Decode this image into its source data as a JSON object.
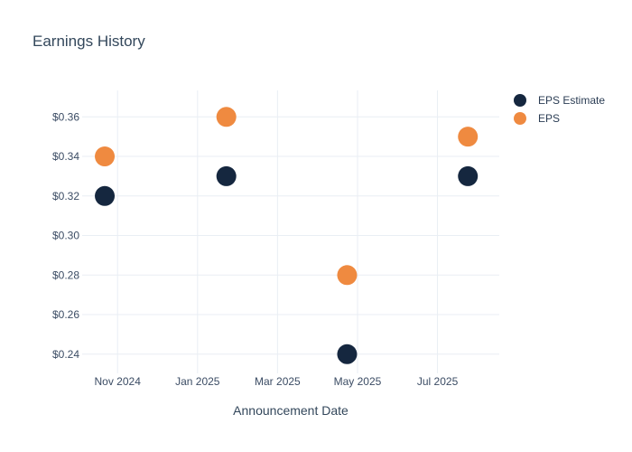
{
  "chart_data": {
    "type": "scatter",
    "title": "Earnings History",
    "xlabel": "Announcement Date",
    "ylabel": "",
    "grid": true,
    "legend_position": "right-top",
    "x_axis_unit": "months offset from Nov 2024 tick",
    "x_tick_labels": [
      "Nov 2024",
      "Jan 2025",
      "Mar 2025",
      "May 2025",
      "Jul 2025"
    ],
    "x_tick_months": [
      0,
      2,
      4,
      6,
      8
    ],
    "y_tick_labels": [
      "$0.24",
      "$0.26",
      "$0.28",
      "$0.30",
      "$0.32",
      "$0.34",
      "$0.36"
    ],
    "y_tick_values": [
      0.24,
      0.26,
      0.28,
      0.3,
      0.32,
      0.34,
      0.36
    ],
    "xlim_months": [
      -0.885,
      9.545
    ],
    "ylim": [
      0.2303,
      0.3734
    ],
    "marker_radius": 11,
    "series": [
      {
        "name": "EPS Estimate",
        "color": "#15273f",
        "points": [
          {
            "x_month": -0.32,
            "approx_date": "late Oct 2024",
            "value": 0.32
          },
          {
            "x_month": 2.72,
            "approx_date": "late Jan 2025",
            "value": 0.33
          },
          {
            "x_month": 5.74,
            "approx_date": "late Apr 2025",
            "value": 0.24
          },
          {
            "x_month": 8.76,
            "approx_date": "late Jul 2025",
            "value": 0.33
          }
        ]
      },
      {
        "name": "EPS",
        "color": "#ef8a40",
        "points": [
          {
            "x_month": -0.32,
            "approx_date": "late Oct 2024",
            "value": 0.34
          },
          {
            "x_month": 2.72,
            "approx_date": "late Jan 2025",
            "value": 0.36
          },
          {
            "x_month": 5.74,
            "approx_date": "late Apr 2025",
            "value": 0.28
          },
          {
            "x_month": 8.76,
            "approx_date": "late Jul 2025",
            "value": 0.35
          }
        ]
      }
    ]
  },
  "colors": {
    "grid": "#e9eef4",
    "tick_text": "#3b4c64",
    "title_text": "#33475b",
    "background": "#ffffff"
  }
}
